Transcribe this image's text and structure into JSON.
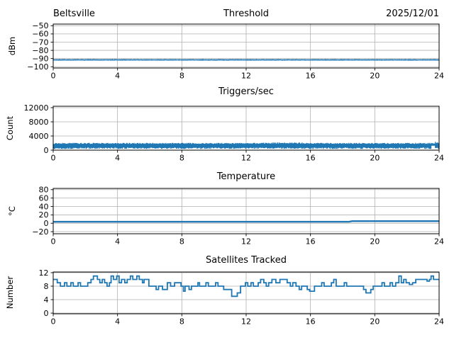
{
  "figure": {
    "line_color": "#1f77b4",
    "grid_color": "#b0b0b0",
    "spine_color": "#000000",
    "text_color": "#000000"
  },
  "chart_data": [
    {
      "type": "band",
      "title_left": "Beltsville",
      "title": "Threshold",
      "title_right": "2025/12/01",
      "ylabel": "dBm",
      "xlim": [
        0,
        24
      ],
      "ylim": [
        -101.5,
        -48
      ],
      "xticks": [
        0,
        4,
        8,
        12,
        16,
        20,
        24
      ],
      "yticks": [
        -50,
        -60,
        -70,
        -80,
        -90,
        -100
      ],
      "grid": true,
      "series": {
        "name": "threshold_dbm",
        "description": "constant noise threshold about -91.5 dBm for 24 h",
        "mean": -91.5,
        "lo": -92.5,
        "hi": -91.0,
        "lo_jitter": 0.25,
        "hi_jitter": 0.35,
        "n": 560,
        "seed": 7
      }
    },
    {
      "type": "band",
      "title": "Triggers/sec",
      "ylabel": "Count",
      "xlim": [
        0,
        24
      ],
      "ylim": [
        0,
        12400
      ],
      "xticks": [
        0,
        4,
        8,
        12,
        16,
        20,
        24
      ],
      "yticks": [
        0,
        4000,
        8000,
        12000
      ],
      "grid": true,
      "series": {
        "name": "triggers_per_sec",
        "description": "noisy band roughly 350-2000 counts all day, slight rise near 14-15 h and 24 h, brief low-value dropout near 23.6 h",
        "mean": 1150,
        "lo": 350,
        "hi": 1750,
        "lo_jitter": 420,
        "hi_jitter": 320,
        "n": 620,
        "seed": 13,
        "bumps": [
          {
            "x0": 13.0,
            "x1": 15.5,
            "dh": 180
          },
          {
            "x0": 23.75,
            "x1": 24.0,
            "dh": 420
          }
        ],
        "gaps": [
          {
            "x0": 23.5,
            "x1": 23.75,
            "lo_min": 1250
          }
        ]
      }
    },
    {
      "type": "line",
      "title": "Temperature",
      "ylabel": "°C",
      "xlim": [
        0,
        24
      ],
      "ylim": [
        -25,
        83
      ],
      "xticks": [
        0,
        4,
        8,
        12,
        16,
        20,
        24
      ],
      "yticks": [
        -20,
        0,
        20,
        40,
        60,
        80
      ],
      "grid": true,
      "line_width": 2.4,
      "points": [
        [
          0,
          3.5
        ],
        [
          18.4,
          3.5
        ],
        [
          18.6,
          5.0
        ],
        [
          24,
          5.0
        ]
      ]
    },
    {
      "type": "step",
      "title": "Satellites Tracked",
      "ylabel": "Number",
      "xlim": [
        0,
        24
      ],
      "ylim": [
        -0.2,
        12.2
      ],
      "xticks": [
        0,
        4,
        8,
        12,
        16,
        20,
        24
      ],
      "yticks": [
        0,
        4,
        8,
        12
      ],
      "grid": true,
      "line_width": 1.8,
      "points": [
        [
          0,
          10
        ],
        [
          0.25,
          9
        ],
        [
          0.45,
          8
        ],
        [
          0.7,
          9
        ],
        [
          0.85,
          8
        ],
        [
          1.1,
          9
        ],
        [
          1.25,
          8
        ],
        [
          1.55,
          9
        ],
        [
          1.7,
          8
        ],
        [
          2.15,
          9
        ],
        [
          2.35,
          10
        ],
        [
          2.5,
          11
        ],
        [
          2.75,
          10
        ],
        [
          2.9,
          9
        ],
        [
          3.05,
          10
        ],
        [
          3.2,
          9
        ],
        [
          3.35,
          8
        ],
        [
          3.5,
          9
        ],
        [
          3.6,
          11
        ],
        [
          3.75,
          10
        ],
        [
          3.95,
          11
        ],
        [
          4.1,
          9
        ],
        [
          4.25,
          10
        ],
        [
          4.45,
          9
        ],
        [
          4.6,
          10
        ],
        [
          4.8,
          11
        ],
        [
          4.95,
          10
        ],
        [
          5.2,
          11
        ],
        [
          5.35,
          10
        ],
        [
          5.55,
          9
        ],
        [
          5.65,
          10
        ],
        [
          5.95,
          8
        ],
        [
          6.4,
          7
        ],
        [
          6.55,
          8
        ],
        [
          6.8,
          7
        ],
        [
          7.1,
          9
        ],
        [
          7.3,
          8
        ],
        [
          7.55,
          9
        ],
        [
          7.95,
          8
        ],
        [
          8.1,
          6.5
        ],
        [
          8.2,
          8
        ],
        [
          8.45,
          7
        ],
        [
          8.6,
          8
        ],
        [
          9.0,
          9
        ],
        [
          9.1,
          8
        ],
        [
          9.5,
          9
        ],
        [
          9.65,
          8
        ],
        [
          10.1,
          9
        ],
        [
          10.25,
          8
        ],
        [
          10.6,
          7
        ],
        [
          11.1,
          5
        ],
        [
          11.45,
          6
        ],
        [
          11.65,
          8
        ],
        [
          11.95,
          9
        ],
        [
          12.1,
          8
        ],
        [
          12.3,
          9
        ],
        [
          12.45,
          8
        ],
        [
          12.75,
          9
        ],
        [
          12.9,
          10
        ],
        [
          13.1,
          9
        ],
        [
          13.25,
          8
        ],
        [
          13.4,
          9
        ],
        [
          13.6,
          10
        ],
        [
          13.85,
          9
        ],
        [
          14.1,
          10
        ],
        [
          14.55,
          9
        ],
        [
          14.75,
          8
        ],
        [
          14.9,
          9
        ],
        [
          15.1,
          8
        ],
        [
          15.3,
          7
        ],
        [
          15.45,
          8
        ],
        [
          15.8,
          7
        ],
        [
          15.95,
          6.5
        ],
        [
          16.25,
          8
        ],
        [
          16.7,
          9
        ],
        [
          16.85,
          8
        ],
        [
          17.3,
          9
        ],
        [
          17.45,
          10
        ],
        [
          17.6,
          8
        ],
        [
          18.1,
          9
        ],
        [
          18.25,
          8
        ],
        [
          19.3,
          7
        ],
        [
          19.45,
          6
        ],
        [
          19.75,
          7
        ],
        [
          19.9,
          8
        ],
        [
          20.45,
          9
        ],
        [
          20.6,
          8
        ],
        [
          20.95,
          9
        ],
        [
          21.1,
          8
        ],
        [
          21.3,
          9
        ],
        [
          21.5,
          11
        ],
        [
          21.65,
          9
        ],
        [
          21.8,
          10
        ],
        [
          21.95,
          9
        ],
        [
          22.15,
          8.5
        ],
        [
          22.35,
          9
        ],
        [
          22.55,
          10
        ],
        [
          23.25,
          9.5
        ],
        [
          23.4,
          10
        ],
        [
          23.5,
          11
        ],
        [
          23.65,
          10
        ],
        [
          24,
          10
        ]
      ]
    }
  ]
}
